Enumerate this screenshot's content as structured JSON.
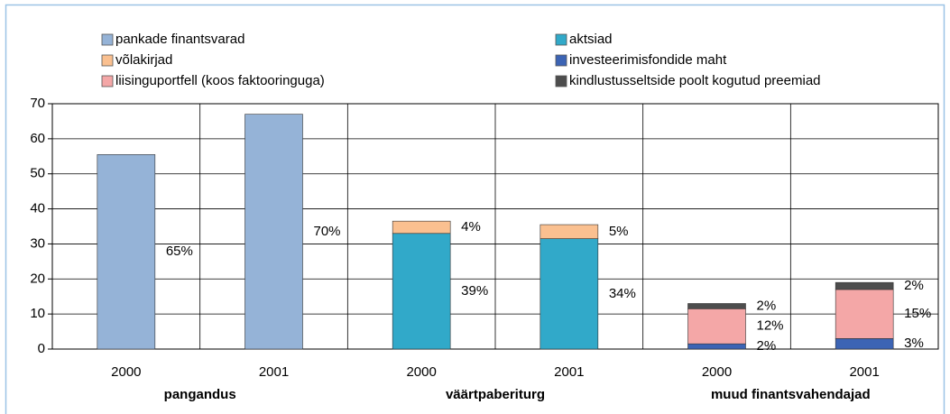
{
  "chart_data": {
    "type": "stacked_bar",
    "categories": [
      "2000",
      "2001",
      "2000",
      "2001",
      "2000",
      "2001"
    ],
    "groups": [
      "pangandus",
      "väärtpaberiturg",
      "muud finantsvahendajad"
    ],
    "ylim": [
      0,
      70
    ],
    "yticks": [
      0,
      10,
      20,
      30,
      40,
      50,
      60,
      70
    ],
    "grid": true,
    "legend": "top",
    "series": [
      {
        "name": "pankade finantsvarad",
        "color": "#95b3d7",
        "values": [
          55.5,
          67,
          null,
          null,
          null,
          null
        ],
        "share_labels": [
          "65%",
          "70%",
          null,
          null,
          null,
          null
        ]
      },
      {
        "name": "aktsiad",
        "color": "#31a9c9",
        "values": [
          null,
          null,
          33,
          31.5,
          null,
          null
        ],
        "share_labels": [
          null,
          null,
          "39%",
          "34%",
          null,
          null
        ]
      },
      {
        "name": "võlakirjad",
        "color": "#fac090",
        "values": [
          null,
          null,
          3.5,
          4,
          null,
          null
        ],
        "share_labels": [
          null,
          null,
          "4%",
          "5%",
          null,
          null
        ]
      },
      {
        "name": "investeerimisfondide maht",
        "color": "#3c64b4",
        "values": [
          null,
          null,
          null,
          null,
          1.5,
          3
        ],
        "share_labels": [
          null,
          null,
          null,
          null,
          "2%",
          "3%"
        ]
      },
      {
        "name": "liisinguportfell (koos faktooringuga)",
        "color": "#f4a7a7",
        "values": [
          null,
          null,
          null,
          null,
          10,
          14
        ],
        "share_labels": [
          null,
          null,
          null,
          null,
          "12%",
          "15%"
        ]
      },
      {
        "name": "kindlustusseltside poolt kogutud preemiad",
        "color": "#4d4d4d",
        "values": [
          null,
          null,
          null,
          null,
          1.5,
          2
        ],
        "share_labels": [
          null,
          null,
          null,
          null,
          "2%",
          "2%"
        ]
      }
    ]
  }
}
